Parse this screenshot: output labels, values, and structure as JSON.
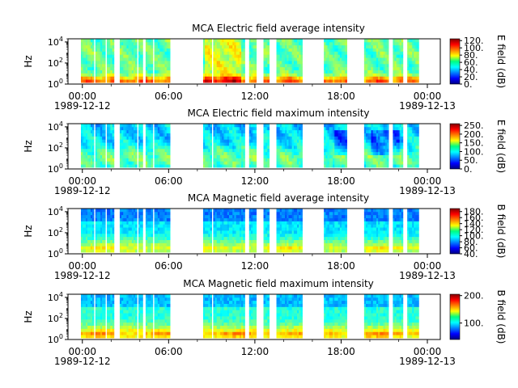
{
  "chart_data": [
    {
      "type": "heatmap",
      "title": "MCA  Electric field average intensity",
      "ylabel": "Hz",
      "ylim": [
        1,
        20000
      ],
      "yscale": "log",
      "yticks": [
        {
          "exp": "0"
        },
        {
          "exp": "2"
        },
        {
          "exp": "4"
        }
      ],
      "xlim": [
        "1989-12-12 00:00",
        "1989-12-13 00:00"
      ],
      "xticks": [
        {
          "t": 0,
          "time": "00:00",
          "date": "1989-12-12"
        },
        {
          "t": 6,
          "time": "06:00",
          "date": ""
        },
        {
          "t": 12,
          "time": "12:00",
          "date": ""
        },
        {
          "t": 18,
          "time": "18:00",
          "date": ""
        },
        {
          "t": 24,
          "time": "00:00",
          "date": "1989-12-13"
        }
      ],
      "colorbar": {
        "label": "E field (dB)",
        "range": [
          0,
          125
        ],
        "ticks": [
          "0.",
          "20.",
          "40.",
          "60.",
          "80.",
          "100.",
          "120."
        ]
      },
      "profile": "ea"
    },
    {
      "type": "heatmap",
      "title": "MCA  Electric field maximum intensity",
      "ylabel": "Hz",
      "ylim": [
        1,
        20000
      ],
      "yscale": "log",
      "yticks": [
        {
          "exp": "0"
        },
        {
          "exp": "2"
        },
        {
          "exp": "4"
        }
      ],
      "xlim": [
        "1989-12-12 00:00",
        "1989-12-13 00:00"
      ],
      "xticks": [
        {
          "t": 0,
          "time": "00:00",
          "date": "1989-12-12"
        },
        {
          "t": 6,
          "time": "06:00",
          "date": ""
        },
        {
          "t": 12,
          "time": "12:00",
          "date": ""
        },
        {
          "t": 18,
          "time": "18:00",
          "date": ""
        },
        {
          "t": 24,
          "time": "00:00",
          "date": "1989-12-13"
        }
      ],
      "colorbar": {
        "label": "E field (dB)",
        "range": [
          0,
          260
        ],
        "ticks": [
          "0.",
          "50.",
          "100.",
          "150.",
          "200.",
          "250."
        ]
      },
      "profile": "em"
    },
    {
      "type": "heatmap",
      "title": "MCA  Magnetic field average intensity",
      "ylabel": "Hz",
      "ylim": [
        1,
        20000
      ],
      "yscale": "log",
      "yticks": [
        {
          "exp": "0"
        },
        {
          "exp": "2"
        },
        {
          "exp": "4"
        }
      ],
      "xlim": [
        "1989-12-12 00:00",
        "1989-12-13 00:00"
      ],
      "xticks": [
        {
          "t": 0,
          "time": "00:00",
          "date": "1989-12-12"
        },
        {
          "t": 6,
          "time": "06:00",
          "date": ""
        },
        {
          "t": 12,
          "time": "12:00",
          "date": ""
        },
        {
          "t": 18,
          "time": "18:00",
          "date": ""
        },
        {
          "t": 24,
          "time": "00:00",
          "date": "1989-12-13"
        }
      ],
      "colorbar": {
        "label": "B field (dB)",
        "range": [
          40,
          190
        ],
        "ticks": [
          "40.",
          "60.",
          "80.",
          "100.",
          "120.",
          "140.",
          "160.",
          "180."
        ]
      },
      "profile": "ba"
    },
    {
      "type": "heatmap",
      "title": "MCA  Magnetic field maximum intensity",
      "ylabel": "Hz",
      "ylim": [
        1,
        20000
      ],
      "yscale": "log",
      "yticks": [
        {
          "exp": "0"
        },
        {
          "exp": "2"
        },
        {
          "exp": "4"
        }
      ],
      "xlim": [
        "1989-12-12 00:00",
        "1989-12-13 00:00"
      ],
      "xticks": [
        {
          "t": 0,
          "time": "00:00",
          "date": "1989-12-12"
        },
        {
          "t": 6,
          "time": "06:00",
          "date": ""
        },
        {
          "t": 12,
          "time": "12:00",
          "date": ""
        },
        {
          "t": 18,
          "time": "18:00",
          "date": ""
        },
        {
          "t": 24,
          "time": "00:00",
          "date": "1989-12-13"
        }
      ],
      "colorbar": {
        "label": "B field (dB)",
        "range": [
          40,
          205
        ],
        "ticks": [
          "100.",
          "200."
        ]
      },
      "profile": "bm"
    }
  ],
  "data_intervals_hours": [
    [
      -0.1,
      0.8
    ],
    [
      0.9,
      1.6
    ],
    [
      1.7,
      2.2
    ],
    [
      2.6,
      3.8
    ],
    [
      3.9,
      4.2
    ],
    [
      4.4,
      4.9
    ],
    [
      5.0,
      6.1
    ],
    [
      8.4,
      9.0
    ],
    [
      9.1,
      11.3
    ],
    [
      11.6,
      12.1
    ],
    [
      12.6,
      13.0
    ],
    [
      13.5,
      15.3
    ],
    [
      16.8,
      18.4
    ],
    [
      19.6,
      21.3
    ],
    [
      21.6,
      22.3
    ],
    [
      22.6,
      23.4
    ]
  ]
}
